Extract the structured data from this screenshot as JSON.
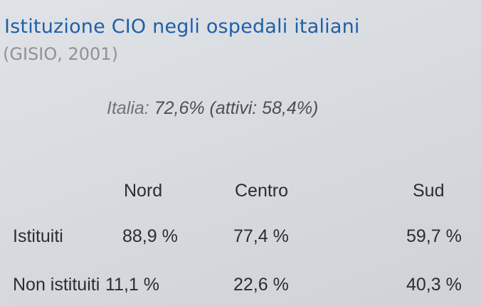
{
  "slide": {
    "title": "Istituzione CIO negli ospedali italiani",
    "subtitle": "(GISIO, 2001)"
  },
  "summary": {
    "country": "Italia:",
    "value": "72,6% (attivi: 58,4%)"
  },
  "table": {
    "columns": [
      "",
      "Nord",
      "Centro",
      "Sud"
    ],
    "rows": [
      {
        "label": "Istituiti",
        "values": [
          "88,9 %",
          "77,4 %",
          "59,7 %"
        ]
      },
      {
        "label": "Non istituiti",
        "values": [
          "11,1 %",
          "22,6 %",
          "40,3 %"
        ]
      }
    ]
  }
}
